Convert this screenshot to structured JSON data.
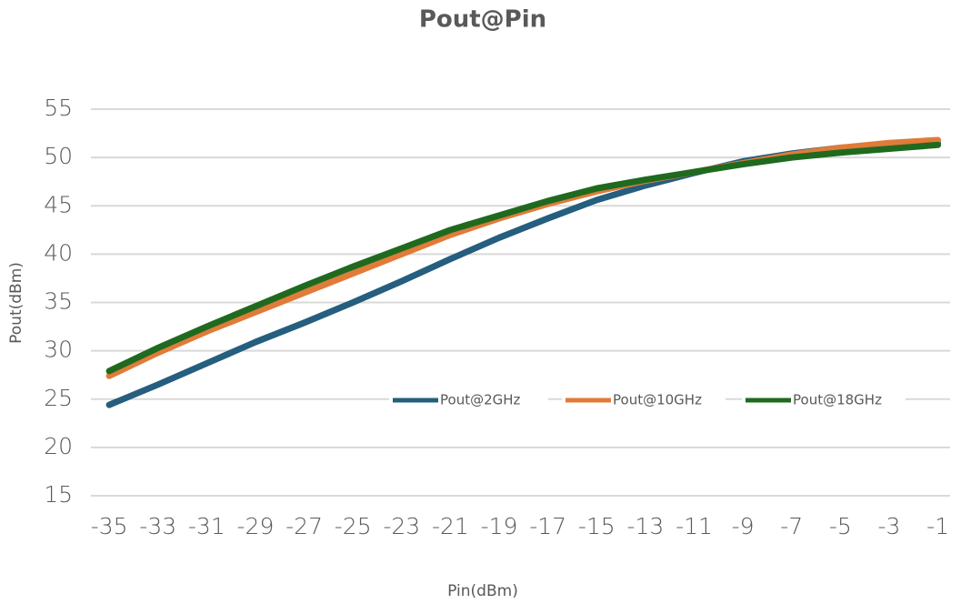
{
  "chart_data": {
    "type": "line",
    "title": "Pout@Pin",
    "x_label": "Pin(dBm)",
    "y_label": "Pout(dBm)",
    "x": [
      -35,
      -33,
      -31,
      -29,
      -27,
      -25,
      -23,
      -21,
      -19,
      -17,
      -15,
      -13,
      -11,
      -9,
      -7,
      -5,
      -3,
      -1
    ],
    "series": [
      {
        "name": "Pout@2GHz",
        "color": "#255e7e",
        "values": [
          24.4,
          26.5,
          28.7,
          30.9,
          32.9,
          35.0,
          37.2,
          39.5,
          41.7,
          43.7,
          45.6,
          47.1,
          48.4,
          49.6,
          50.4,
          51.0,
          51.3,
          51.5
        ]
      },
      {
        "name": "Pout@10GHz",
        "color": "#e07b39",
        "values": [
          27.4,
          29.8,
          32.0,
          34.0,
          36.0,
          38.0,
          40.0,
          42.0,
          43.7,
          45.2,
          46.5,
          47.6,
          48.5,
          49.4,
          50.3,
          51.0,
          51.5,
          51.8
        ]
      },
      {
        "name": "Pout@18GHz",
        "color": "#1f6a1f",
        "values": [
          27.9,
          30.3,
          32.5,
          34.6,
          36.7,
          38.7,
          40.6,
          42.5,
          44.0,
          45.5,
          46.8,
          47.7,
          48.5,
          49.3,
          50.0,
          50.5,
          50.9,
          51.3
        ]
      }
    ],
    "xlim": [
      -35.75,
      -0.5
    ],
    "xticks": [
      -35,
      -33,
      -31,
      -29,
      -27,
      -25,
      -23,
      -21,
      -19,
      -17,
      -15,
      -13,
      -11,
      -9,
      -7,
      -5,
      -3,
      -1
    ],
    "ylim": [
      15,
      55
    ],
    "yticks": [
      15,
      20,
      25,
      30,
      35,
      40,
      45,
      50,
      55
    ],
    "grid": true
  }
}
